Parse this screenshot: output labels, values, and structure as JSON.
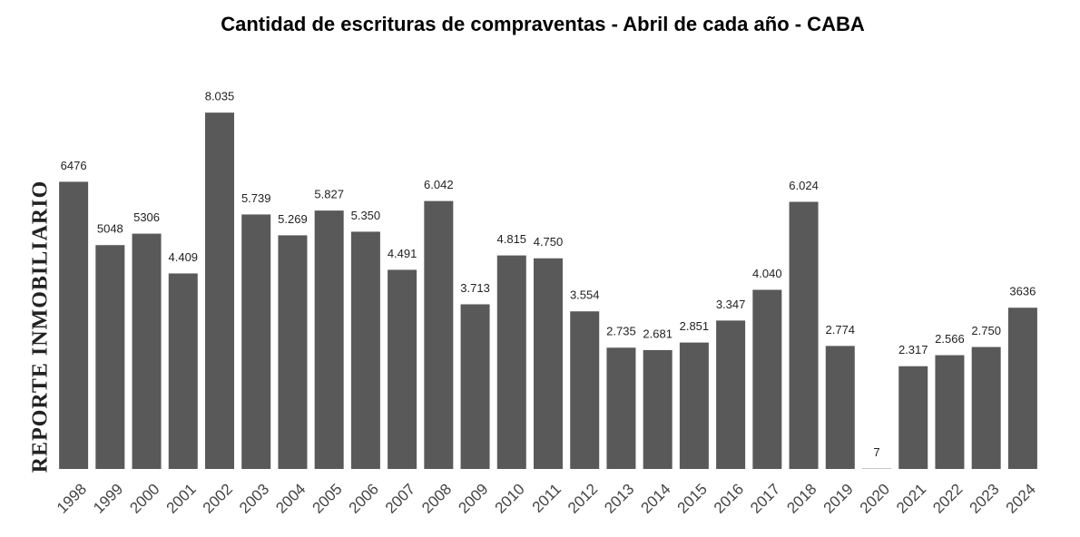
{
  "chart_data": {
    "type": "bar",
    "title": "Cantidad de escrituras de compraventas - Abril de cada año - CABA",
    "watermark": "REPORTE INMOBILIARIO",
    "categories": [
      "1998",
      "1999",
      "2000",
      "2001",
      "2002",
      "2003",
      "2004",
      "2005",
      "2006",
      "2007",
      "2008",
      "2009",
      "2010",
      "2011",
      "2012",
      "2013",
      "2014",
      "2015",
      "2016",
      "2017",
      "2018",
      "2019",
      "2020",
      "2021",
      "2022",
      "2023",
      "2024"
    ],
    "values": [
      6476,
      5048,
      5306,
      4409,
      8035,
      5739,
      5269,
      5827,
      5350,
      4491,
      6042,
      3713,
      4815,
      4750,
      3554,
      2735,
      2681,
      2851,
      3347,
      4040,
      6024,
      2774,
      7,
      2317,
      2566,
      2750,
      3636
    ],
    "value_labels": [
      "6476",
      "5048",
      "5306",
      "4.409",
      "8.035",
      "5.739",
      "5.269",
      "5.827",
      "5.350",
      "4.491",
      "6.042",
      "3.713",
      "4.815",
      "4.750",
      "3.554",
      "2.735",
      "2.681",
      "2.851",
      "3.347",
      "4.040",
      "6.024",
      "2.774",
      "7",
      "2.317",
      "2.566",
      "2.750",
      "3636"
    ],
    "color": "#595959",
    "ylim": [
      0,
      9000
    ]
  }
}
